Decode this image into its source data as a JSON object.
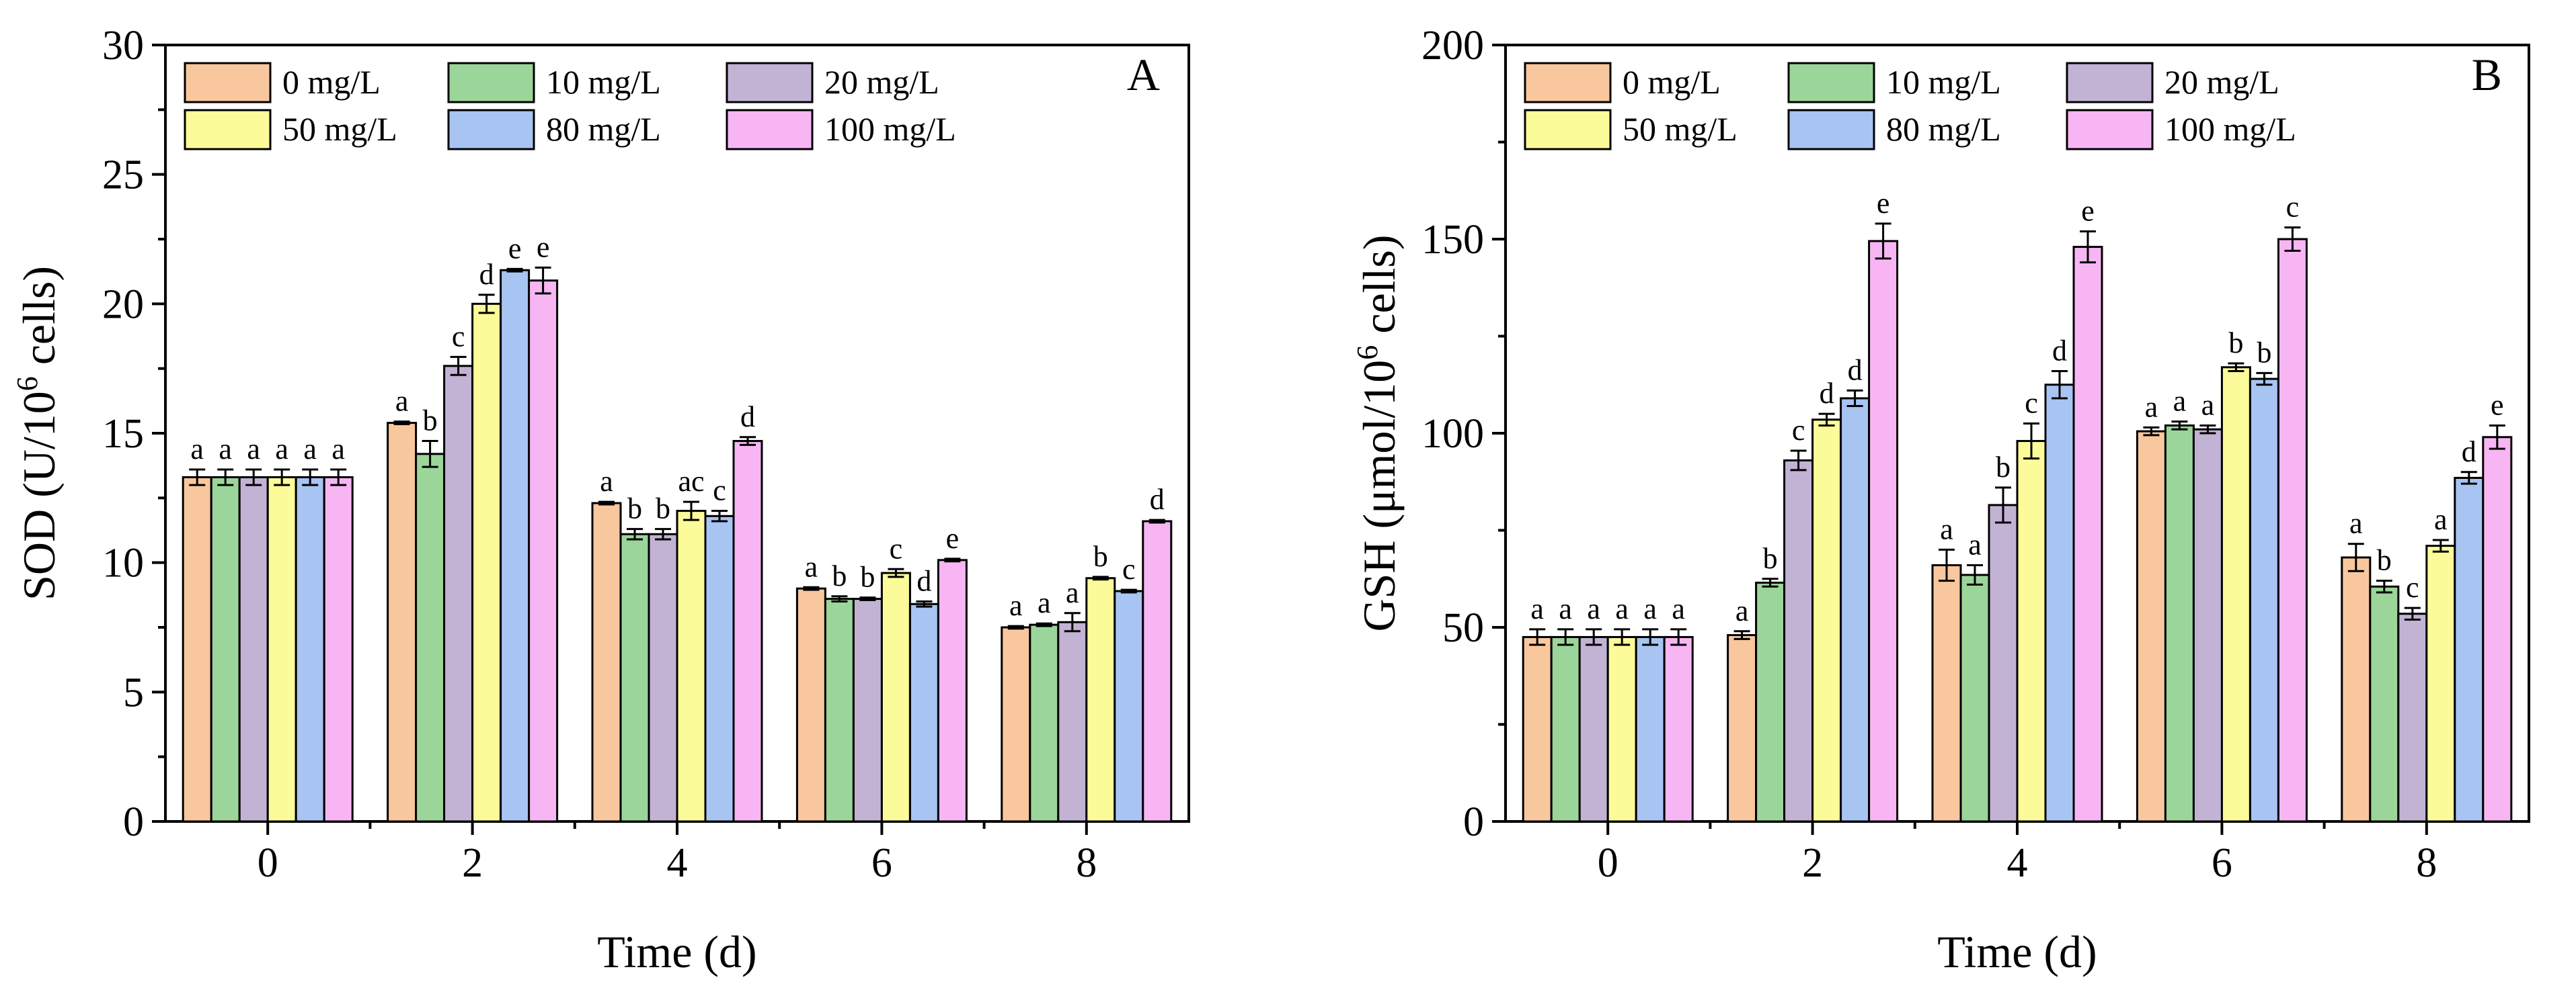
{
  "chart_data": [
    {
      "type": "bar",
      "panel": "A",
      "xlabel": "Time (d)",
      "ylabel_prefix": "SOD (U/10",
      "ylabel_sup": "6",
      "ylabel_suffix": " cells)",
      "ylim": [
        0,
        30
      ],
      "yticks": [
        0,
        5,
        10,
        15,
        20,
        25,
        30
      ],
      "categories": [
        "0",
        "2",
        "4",
        "6",
        "8"
      ],
      "legend_position": "top-left",
      "series": [
        {
          "name": "0 mg/L",
          "color": "#F9C79E",
          "values": [
            13.3,
            15.4,
            12.3,
            9.0,
            7.5
          ],
          "errors": [
            0.3,
            0.05,
            0.05,
            0.05,
            0.05
          ],
          "labels": [
            "a",
            "a",
            "a",
            "a",
            "a"
          ]
        },
        {
          "name": "10 mg/L",
          "color": "#9BD59A",
          "values": [
            13.3,
            14.2,
            11.1,
            8.6,
            7.6
          ],
          "errors": [
            0.3,
            0.5,
            0.2,
            0.1,
            0.05
          ],
          "labels": [
            "a",
            "b",
            "b",
            "b",
            "a"
          ]
        },
        {
          "name": "20 mg/L",
          "color": "#C2B3D5",
          "values": [
            13.3,
            17.6,
            11.1,
            8.6,
            7.7
          ],
          "errors": [
            0.3,
            0.35,
            0.2,
            0.05,
            0.35
          ],
          "labels": [
            "a",
            "c",
            "b",
            "b",
            "a"
          ]
        },
        {
          "name": "50 mg/L",
          "color": "#FBFB9A",
          "values": [
            13.3,
            20.0,
            12.0,
            9.6,
            9.4
          ],
          "errors": [
            0.3,
            0.35,
            0.35,
            0.15,
            0.05
          ],
          "labels": [
            "a",
            "d",
            "ac",
            "c",
            "b"
          ]
        },
        {
          "name": "80 mg/L",
          "color": "#A8C4F2",
          "values": [
            13.3,
            21.3,
            11.8,
            8.4,
            8.9
          ],
          "errors": [
            0.3,
            0.05,
            0.2,
            0.1,
            0.05
          ],
          "labels": [
            "a",
            "e",
            "c",
            "d",
            "c"
          ]
        },
        {
          "name": "100 mg/L",
          "color": "#F7B6F3",
          "values": [
            13.3,
            20.9,
            14.7,
            10.1,
            11.6
          ],
          "errors": [
            0.3,
            0.5,
            0.15,
            0.05,
            0.05
          ],
          "labels": [
            "a",
            "e",
            "d",
            "e",
            "d"
          ]
        }
      ]
    },
    {
      "type": "bar",
      "panel": "B",
      "xlabel": "Time (d)",
      "ylabel_prefix": "GSH (μmol/10",
      "ylabel_sup": "6",
      "ylabel_suffix": " cells)",
      "ylim": [
        0,
        200
      ],
      "yticks": [
        0,
        50,
        100,
        150,
        200
      ],
      "categories": [
        "0",
        "2",
        "4",
        "6",
        "8"
      ],
      "legend_position": "top-left",
      "series": [
        {
          "name": "0 mg/L",
          "color": "#F9C79E",
          "values": [
            47.5,
            48.0,
            66.0,
            100.5,
            68.0
          ],
          "errors": [
            2.0,
            1.0,
            4.0,
            1.0,
            3.5
          ],
          "labels": [
            "a",
            "a",
            "a",
            "a",
            "a"
          ]
        },
        {
          "name": "10 mg/L",
          "color": "#9BD59A",
          "values": [
            47.5,
            61.5,
            63.5,
            102.0,
            60.5
          ],
          "errors": [
            2.0,
            1.0,
            2.5,
            1.0,
            1.5
          ],
          "labels": [
            "a",
            "b",
            "a",
            "a",
            "b"
          ]
        },
        {
          "name": "20 mg/L",
          "color": "#C2B3D5",
          "values": [
            47.5,
            93.0,
            81.5,
            101.0,
            53.5
          ],
          "errors": [
            2.0,
            2.5,
            4.5,
            1.0,
            1.5
          ],
          "labels": [
            "a",
            "c",
            "b",
            "a",
            "c"
          ]
        },
        {
          "name": "50 mg/L",
          "color": "#FBFB9A",
          "values": [
            47.5,
            103.5,
            98.0,
            117.0,
            71.0
          ],
          "errors": [
            2.0,
            1.5,
            4.5,
            1.0,
            1.5
          ],
          "labels": [
            "a",
            "d",
            "c",
            "b",
            "a"
          ]
        },
        {
          "name": "80 mg/L",
          "color": "#A8C4F2",
          "values": [
            47.5,
            109.0,
            112.5,
            114.0,
            88.5
          ],
          "errors": [
            2.0,
            2.0,
            3.5,
            1.5,
            1.5
          ],
          "labels": [
            "a",
            "d",
            "d",
            "b",
            "d"
          ]
        },
        {
          "name": "100 mg/L",
          "color": "#F7B6F3",
          "values": [
            47.5,
            149.5,
            148.0,
            150.0,
            99.0
          ],
          "errors": [
            2.0,
            4.5,
            4.0,
            3.0,
            3.0
          ],
          "labels": [
            "a",
            "e",
            "e",
            "c",
            "e"
          ]
        }
      ]
    }
  ]
}
